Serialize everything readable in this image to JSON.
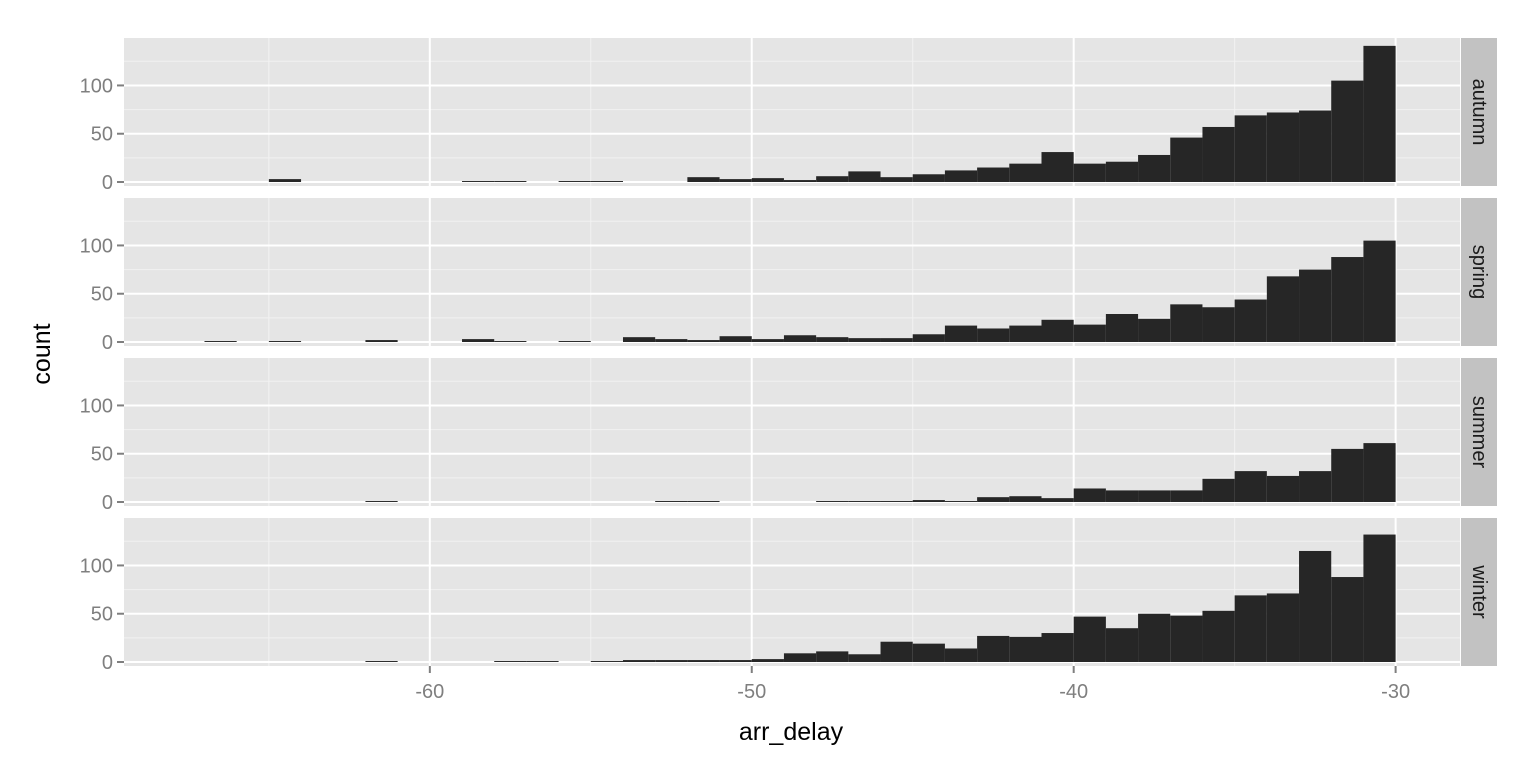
{
  "chart_data": {
    "type": "bar",
    "xlabel": "arr_delay",
    "ylabel": "count",
    "xlim": [
      -69.5,
      -28
    ],
    "ylim": [
      0,
      145
    ],
    "x_ticks": [
      -60,
      -50,
      -40,
      -30
    ],
    "x_tick_labels": [
      "-60",
      "-50",
      "-40",
      "-30"
    ],
    "y_ticks": [
      0,
      50,
      100
    ],
    "y_tick_labels": [
      "0",
      "50",
      "100"
    ],
    "bin_width": 1,
    "facet": "rows",
    "grid": true,
    "bar_color": "#262626",
    "panel_background": "#e5e5e5",
    "strip_background": "#c2c2c2",
    "series": [
      {
        "name": "autumn",
        "bins": [
          {
            "x0": -65,
            "x1": -64,
            "count": 3
          },
          {
            "x0": -59,
            "x1": -58,
            "count": 1
          },
          {
            "x0": -58,
            "x1": -57,
            "count": 1
          },
          {
            "x0": -56,
            "x1": -55,
            "count": 1
          },
          {
            "x0": -55,
            "x1": -54,
            "count": 1
          },
          {
            "x0": -52,
            "x1": -51,
            "count": 5
          },
          {
            "x0": -51,
            "x1": -50,
            "count": 3
          },
          {
            "x0": -50,
            "x1": -49,
            "count": 4
          },
          {
            "x0": -49,
            "x1": -48,
            "count": 2
          },
          {
            "x0": -48,
            "x1": -47,
            "count": 6
          },
          {
            "x0": -47,
            "x1": -46,
            "count": 11
          },
          {
            "x0": -46,
            "x1": -45,
            "count": 5
          },
          {
            "x0": -45,
            "x1": -44,
            "count": 8
          },
          {
            "x0": -44,
            "x1": -43,
            "count": 12
          },
          {
            "x0": -43,
            "x1": -42,
            "count": 15
          },
          {
            "x0": -42,
            "x1": -41,
            "count": 19
          },
          {
            "x0": -41,
            "x1": -40,
            "count": 31
          },
          {
            "x0": -40,
            "x1": -39,
            "count": 19
          },
          {
            "x0": -39,
            "x1": -38,
            "count": 21
          },
          {
            "x0": -38,
            "x1": -37,
            "count": 28
          },
          {
            "x0": -37,
            "x1": -36,
            "count": 46
          },
          {
            "x0": -36,
            "x1": -35,
            "count": 57
          },
          {
            "x0": -35,
            "x1": -34,
            "count": 69
          },
          {
            "x0": -34,
            "x1": -33,
            "count": 72
          },
          {
            "x0": -33,
            "x1": -32,
            "count": 74
          },
          {
            "x0": -32,
            "x1": -31,
            "count": 105
          },
          {
            "x0": -31,
            "x1": -30,
            "count": 141
          }
        ]
      },
      {
        "name": "spring",
        "bins": [
          {
            "x0": -67,
            "x1": -66,
            "count": 1
          },
          {
            "x0": -65,
            "x1": -64,
            "count": 1
          },
          {
            "x0": -62,
            "x1": -61,
            "count": 2
          },
          {
            "x0": -59,
            "x1": -58,
            "count": 3
          },
          {
            "x0": -58,
            "x1": -57,
            "count": 1
          },
          {
            "x0": -56,
            "x1": -55,
            "count": 1
          },
          {
            "x0": -54,
            "x1": -53,
            "count": 5
          },
          {
            "x0": -53,
            "x1": -52,
            "count": 3
          },
          {
            "x0": -52,
            "x1": -51,
            "count": 2
          },
          {
            "x0": -51,
            "x1": -50,
            "count": 6
          },
          {
            "x0": -50,
            "x1": -49,
            "count": 3
          },
          {
            "x0": -49,
            "x1": -48,
            "count": 7
          },
          {
            "x0": -48,
            "x1": -47,
            "count": 5
          },
          {
            "x0": -47,
            "x1": -46,
            "count": 4
          },
          {
            "x0": -46,
            "x1": -45,
            "count": 4
          },
          {
            "x0": -45,
            "x1": -44,
            "count": 8
          },
          {
            "x0": -44,
            "x1": -43,
            "count": 17
          },
          {
            "x0": -43,
            "x1": -42,
            "count": 14
          },
          {
            "x0": -42,
            "x1": -41,
            "count": 17
          },
          {
            "x0": -41,
            "x1": -40,
            "count": 23
          },
          {
            "x0": -40,
            "x1": -39,
            "count": 18
          },
          {
            "x0": -39,
            "x1": -38,
            "count": 29
          },
          {
            "x0": -38,
            "x1": -37,
            "count": 24
          },
          {
            "x0": -37,
            "x1": -36,
            "count": 39
          },
          {
            "x0": -36,
            "x1": -35,
            "count": 36
          },
          {
            "x0": -35,
            "x1": -34,
            "count": 44
          },
          {
            "x0": -34,
            "x1": -33,
            "count": 68
          },
          {
            "x0": -33,
            "x1": -32,
            "count": 75
          },
          {
            "x0": -32,
            "x1": -31,
            "count": 88
          },
          {
            "x0": -31,
            "x1": -30,
            "count": 105
          }
        ]
      },
      {
        "name": "summer",
        "bins": [
          {
            "x0": -62,
            "x1": -61,
            "count": 1
          },
          {
            "x0": -53,
            "x1": -52,
            "count": 1
          },
          {
            "x0": -52,
            "x1": -51,
            "count": 1
          },
          {
            "x0": -48,
            "x1": -47,
            "count": 1
          },
          {
            "x0": -47,
            "x1": -46,
            "count": 1
          },
          {
            "x0": -46,
            "x1": -45,
            "count": 1
          },
          {
            "x0": -45,
            "x1": -44,
            "count": 2
          },
          {
            "x0": -44,
            "x1": -43,
            "count": 1
          },
          {
            "x0": -43,
            "x1": -42,
            "count": 5
          },
          {
            "x0": -42,
            "x1": -41,
            "count": 6
          },
          {
            "x0": -41,
            "x1": -40,
            "count": 4
          },
          {
            "x0": -40,
            "x1": -39,
            "count": 14
          },
          {
            "x0": -39,
            "x1": -38,
            "count": 12
          },
          {
            "x0": -38,
            "x1": -37,
            "count": 12
          },
          {
            "x0": -37,
            "x1": -36,
            "count": 12
          },
          {
            "x0": -36,
            "x1": -35,
            "count": 24
          },
          {
            "x0": -35,
            "x1": -34,
            "count": 32
          },
          {
            "x0": -34,
            "x1": -33,
            "count": 27
          },
          {
            "x0": -33,
            "x1": -32,
            "count": 32
          },
          {
            "x0": -32,
            "x1": -31,
            "count": 55
          },
          {
            "x0": -31,
            "x1": -30,
            "count": 61
          }
        ]
      },
      {
        "name": "winter",
        "bins": [
          {
            "x0": -62,
            "x1": -61,
            "count": 1
          },
          {
            "x0": -58,
            "x1": -57,
            "count": 1
          },
          {
            "x0": -57,
            "x1": -56,
            "count": 1
          },
          {
            "x0": -55,
            "x1": -54,
            "count": 1
          },
          {
            "x0": -54,
            "x1": -53,
            "count": 2
          },
          {
            "x0": -53,
            "x1": -52,
            "count": 2
          },
          {
            "x0": -52,
            "x1": -51,
            "count": 2
          },
          {
            "x0": -51,
            "x1": -50,
            "count": 2
          },
          {
            "x0": -50,
            "x1": -49,
            "count": 3
          },
          {
            "x0": -49,
            "x1": -48,
            "count": 9
          },
          {
            "x0": -48,
            "x1": -47,
            "count": 11
          },
          {
            "x0": -47,
            "x1": -46,
            "count": 8
          },
          {
            "x0": -46,
            "x1": -45,
            "count": 21
          },
          {
            "x0": -45,
            "x1": -44,
            "count": 19
          },
          {
            "x0": -44,
            "x1": -43,
            "count": 14
          },
          {
            "x0": -43,
            "x1": -42,
            "count": 27
          },
          {
            "x0": -42,
            "x1": -41,
            "count": 26
          },
          {
            "x0": -41,
            "x1": -40,
            "count": 30
          },
          {
            "x0": -40,
            "x1": -39,
            "count": 47
          },
          {
            "x0": -39,
            "x1": -38,
            "count": 35
          },
          {
            "x0": -38,
            "x1": -37,
            "count": 50
          },
          {
            "x0": -37,
            "x1": -36,
            "count": 48
          },
          {
            "x0": -36,
            "x1": -35,
            "count": 53
          },
          {
            "x0": -35,
            "x1": -34,
            "count": 69
          },
          {
            "x0": -34,
            "x1": -33,
            "count": 71
          },
          {
            "x0": -33,
            "x1": -32,
            "count": 115
          },
          {
            "x0": -32,
            "x1": -31,
            "count": 88
          },
          {
            "x0": -31,
            "x1": -30,
            "count": 132
          }
        ]
      }
    ]
  }
}
